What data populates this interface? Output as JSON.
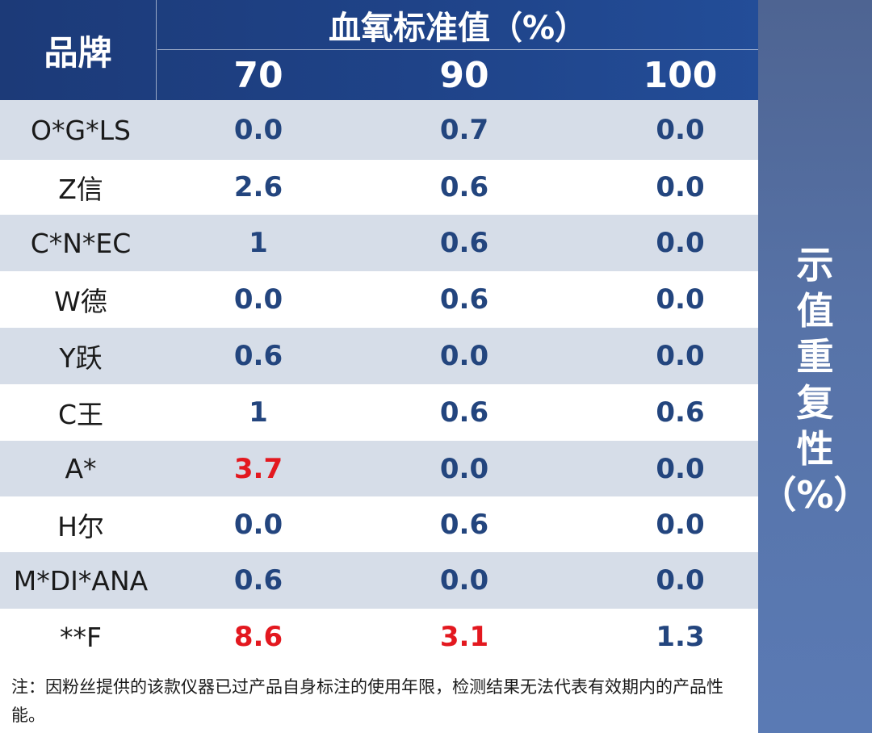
{
  "header": {
    "brand_label": "品牌",
    "group_label": "血氧标准值（%）",
    "columns": [
      "70",
      "90",
      "100"
    ]
  },
  "rows": [
    {
      "brand": "O*G*LS",
      "values": [
        "0.0",
        "0.7",
        "0.0"
      ],
      "highlight": [
        false,
        false,
        false
      ]
    },
    {
      "brand": "Z信",
      "values": [
        "2.6",
        "0.6",
        "0.0"
      ],
      "highlight": [
        false,
        false,
        false
      ]
    },
    {
      "brand": "C*N*EC",
      "values": [
        "1",
        "0.6",
        "0.0"
      ],
      "highlight": [
        false,
        false,
        false
      ]
    },
    {
      "brand": "W德",
      "values": [
        "0.0",
        "0.6",
        "0.0"
      ],
      "highlight": [
        false,
        false,
        false
      ]
    },
    {
      "brand": "Y跃",
      "values": [
        "0.6",
        "0.0",
        "0.0"
      ],
      "highlight": [
        false,
        false,
        false
      ]
    },
    {
      "brand": "C王",
      "values": [
        "1",
        "0.6",
        "0.6"
      ],
      "highlight": [
        false,
        false,
        false
      ]
    },
    {
      "brand": "A*",
      "values": [
        "3.7",
        "0.0",
        "0.0"
      ],
      "highlight": [
        true,
        false,
        false
      ]
    },
    {
      "brand": "H尔",
      "values": [
        "0.0",
        "0.6",
        "0.0"
      ],
      "highlight": [
        false,
        false,
        false
      ]
    },
    {
      "brand": "M*DI*ANA",
      "values": [
        "0.6",
        "0.0",
        "0.0"
      ],
      "highlight": [
        false,
        false,
        false
      ]
    },
    {
      "brand": "**F",
      "values": [
        "8.6",
        "3.1",
        "1.3"
      ],
      "highlight": [
        true,
        true,
        false
      ]
    }
  ],
  "note": "注：因粉丝提供的该款仪器已过产品自身标注的使用年限，检测结果无法代表有效期内的产品性能。",
  "side_label": [
    "示",
    "值",
    "重",
    "复",
    "性",
    "（%）"
  ],
  "colors": {
    "header_bg": "#1f4388",
    "odd_row": "#d6dde8",
    "value_text": "#23457e",
    "highlight_text": "#e3181f",
    "side_panel": "#5773a8"
  },
  "chart_data": {
    "type": "table",
    "title": "示值重复性（%）",
    "row_header": "品牌",
    "column_group": "血氧标准值（%）",
    "columns": [
      "70",
      "90",
      "100"
    ],
    "rows": [
      {
        "brand": "O*G*LS",
        "values": [
          0.0,
          0.7,
          0.0
        ]
      },
      {
        "brand": "Z信",
        "values": [
          2.6,
          0.6,
          0.0
        ]
      },
      {
        "brand": "C*N*EC",
        "values": [
          1,
          0.6,
          0.0
        ]
      },
      {
        "brand": "W德",
        "values": [
          0.0,
          0.6,
          0.0
        ]
      },
      {
        "brand": "Y跃",
        "values": [
          0.6,
          0.0,
          0.0
        ]
      },
      {
        "brand": "C王",
        "values": [
          1,
          0.6,
          0.6
        ]
      },
      {
        "brand": "A*",
        "values": [
          3.7,
          0.0,
          0.0
        ]
      },
      {
        "brand": "H尔",
        "values": [
          0.0,
          0.6,
          0.0
        ]
      },
      {
        "brand": "M*DI*ANA",
        "values": [
          0.6,
          0.0,
          0.0
        ]
      },
      {
        "brand": "**F",
        "values": [
          8.6,
          3.1,
          1.3
        ]
      }
    ]
  }
}
